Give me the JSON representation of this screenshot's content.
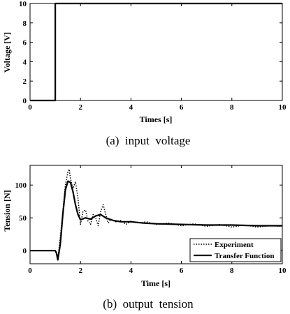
{
  "chart_data": [
    {
      "type": "line",
      "caption": "(a)  input  voltage",
      "xlabel": "Times [s]",
      "ylabel": "Voltage [V]",
      "xlim": [
        0,
        10
      ],
      "ylim": [
        0,
        10
      ],
      "xticks": [
        0,
        2,
        4,
        6,
        8,
        10
      ],
      "yticks": [
        0,
        2,
        4,
        6,
        8,
        10
      ],
      "grid": false,
      "series": [
        {
          "color": "#000000",
          "x": [
            0,
            1.0,
            1.0,
            10
          ],
          "y": [
            0,
            0,
            10,
            10
          ]
        }
      ]
    },
    {
      "type": "line",
      "caption": "(b)  output  tension",
      "xlabel": "Time [s]",
      "ylabel": "Tension [N]",
      "xlim": [
        0,
        10
      ],
      "ylim": [
        -20,
        130
      ],
      "xticks": [
        0,
        2,
        4,
        6,
        8,
        10
      ],
      "yticks": [
        0,
        50,
        100
      ],
      "grid": false,
      "legend_position": "bottom-right",
      "series": [
        {
          "name": "Experiment",
          "style": "dotted",
          "color": "#000000",
          "x": [
            0,
            1.0,
            1.05,
            1.1,
            1.2,
            1.3,
            1.4,
            1.5,
            1.55,
            1.6,
            1.7,
            1.8,
            1.9,
            2.0,
            2.1,
            2.2,
            2.3,
            2.4,
            2.5,
            2.6,
            2.7,
            2.8,
            2.9,
            3.0,
            3.1,
            3.2,
            3.4,
            3.6,
            3.8,
            4.0,
            4.3,
            4.6,
            5.0,
            5.5,
            6.0,
            6.5,
            7.0,
            7.5,
            8.0,
            8.5,
            9.0,
            9.5,
            10.0
          ],
          "y": [
            0,
            0,
            -5,
            -12,
            20,
            60,
            100,
            120,
            124,
            110,
            95,
            105,
            80,
            40,
            60,
            62,
            45,
            40,
            55,
            50,
            38,
            60,
            70,
            55,
            42,
            48,
            44,
            46,
            40,
            45,
            42,
            44,
            40,
            42,
            38,
            41,
            37,
            40,
            36,
            39,
            36,
            38,
            37
          ]
        },
        {
          "name": "Transfer Function",
          "style": "solid",
          "color": "#000000",
          "x": [
            0,
            1.0,
            1.05,
            1.1,
            1.2,
            1.3,
            1.4,
            1.5,
            1.6,
            1.7,
            1.8,
            1.9,
            2.0,
            2.2,
            2.4,
            2.6,
            2.8,
            3.0,
            3.3,
            3.6,
            4.0,
            4.5,
            5.0,
            6.0,
            7.0,
            8.0,
            9.0,
            10.0
          ],
          "y": [
            0,
            0,
            -4,
            -14,
            10,
            55,
            92,
            106,
            104,
            90,
            70,
            55,
            47,
            50,
            48,
            53,
            55,
            50,
            46,
            44,
            44,
            42,
            41,
            40,
            39,
            39,
            38,
            38
          ]
        }
      ]
    }
  ]
}
